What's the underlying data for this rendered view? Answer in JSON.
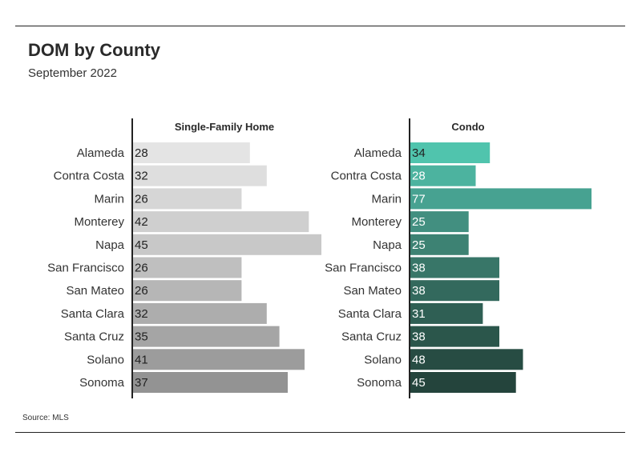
{
  "header": {
    "title": "DOM by County",
    "subtitle": "September 2022"
  },
  "footer": {
    "source": "Source: MLS"
  },
  "chart_data": [
    {
      "type": "bar",
      "orientation": "horizontal",
      "title": "Single-Family Home",
      "categories": [
        "Alameda",
        "Contra Costa",
        "Marin",
        "Monterey",
        "Napa",
        "San Francisco",
        "San Mateo",
        "Santa Clara",
        "Santa Cruz",
        "Solano",
        "Sonoma"
      ],
      "values": [
        28,
        32,
        26,
        42,
        45,
        26,
        26,
        32,
        35,
        41,
        37
      ],
      "colors": [
        "#e4e4e4",
        "#dedede",
        "#d6d6d6",
        "#cfcfcf",
        "#c8c8c8",
        "#bfbfbf",
        "#b6b6b6",
        "#adadad",
        "#a5a5a5",
        "#9c9c9c",
        "#939393"
      ],
      "label_color": "#222222",
      "xlim": [
        0,
        45
      ],
      "grid": false,
      "legend": "none"
    },
    {
      "type": "bar",
      "orientation": "horizontal",
      "title": "Condo",
      "categories": [
        "Alameda",
        "Contra Costa",
        "Marin",
        "Monterey",
        "Napa",
        "San Francisco",
        "San Mateo",
        "Santa Clara",
        "Santa Cruz",
        "Solano",
        "Sonoma"
      ],
      "values": [
        34,
        28,
        77,
        25,
        25,
        38,
        38,
        31,
        38,
        48,
        45
      ],
      "colors": [
        "#50c4ad",
        "#4cb39f",
        "#47a291",
        "#428f80",
        "#3d8273",
        "#387668",
        "#33695d",
        "#2f5f54",
        "#2b564b",
        "#274c43",
        "#24443c"
      ],
      "label_color": "#ffffff",
      "first_label_color": "#222222",
      "xlim": [
        0,
        77
      ],
      "grid": false,
      "legend": "none"
    }
  ]
}
